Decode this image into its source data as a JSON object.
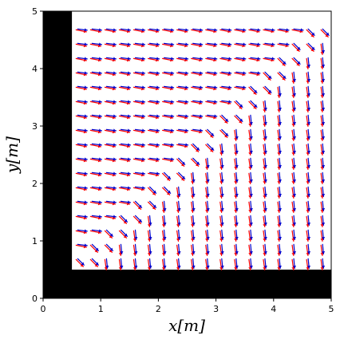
{
  "chart_data": {
    "type": "quiver",
    "xlabel": "x[m]",
    "ylabel": "y[m]",
    "xlim": [
      0,
      5
    ],
    "ylim": [
      0,
      5
    ],
    "xticks": [
      "0",
      "1",
      "2",
      "3",
      "4",
      "5"
    ],
    "yticks": [
      "0",
      "1",
      "2",
      "3",
      "4",
      "5"
    ],
    "grid": false,
    "legend": false,
    "obstacles": [
      {
        "name": "left-wall",
        "x": [
          0,
          0.5
        ],
        "y": [
          0,
          5
        ]
      },
      {
        "name": "bottom-wall",
        "x": [
          0,
          5
        ],
        "y": [
          0,
          0.5
        ]
      }
    ],
    "free_region": {
      "x": [
        0.5,
        5
      ],
      "y": [
        0.5,
        5
      ]
    },
    "grid_points": {
      "x_start": 0.6,
      "x_end": 4.85,
      "x_step": 0.25,
      "y_start": 0.62,
      "y_end": 4.85,
      "y_step": 0.25
    },
    "field_rule": "above the diagonal y - x > offset vectors point right; below it vectors point down",
    "series": [
      {
        "color": "#ff0000",
        "style": "reference field"
      },
      {
        "color": "#0000cc",
        "style": "predicted field"
      }
    ]
  }
}
